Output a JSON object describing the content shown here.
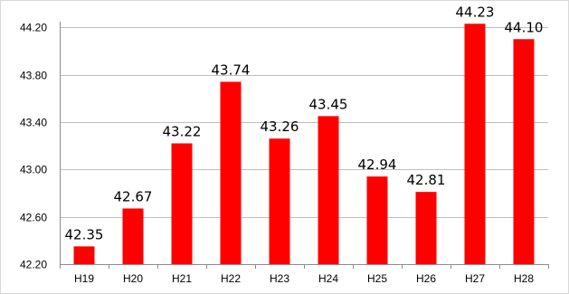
{
  "chart_data": {
    "type": "bar",
    "categories": [
      "H19",
      "H20",
      "H21",
      "H22",
      "H23",
      "H24",
      "H25",
      "H26",
      "H27",
      "H28"
    ],
    "values": [
      42.35,
      42.67,
      43.22,
      43.74,
      43.26,
      43.45,
      42.94,
      42.81,
      44.23,
      44.1
    ],
    "value_labels": [
      "42.35",
      "42.67",
      "43.22",
      "43.74",
      "43.26",
      "43.45",
      "42.94",
      "42.81",
      "44.23",
      "44.10"
    ],
    "y_ticks": [
      "42.20",
      "42.60",
      "43.00",
      "43.40",
      "43.80",
      "44.20"
    ],
    "ylim": [
      42.2,
      44.4
    ],
    "grid": true,
    "legend": "none",
    "title": "",
    "xlabel": "",
    "ylabel": "",
    "colors": {
      "bar": "#ff0000",
      "grid": "#bfbfbf",
      "frame": "#8c8c8c"
    }
  }
}
